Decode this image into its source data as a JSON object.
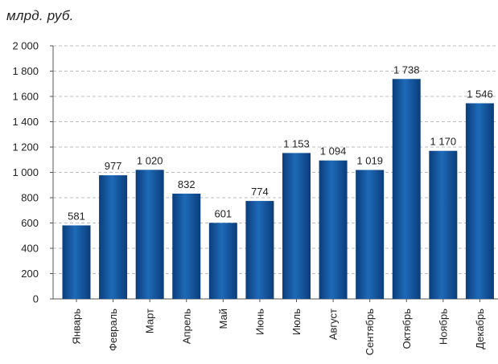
{
  "chart_data": {
    "type": "bar",
    "unit_label": "млрд. руб.",
    "categories": [
      "Январь",
      "Февраль",
      "Март",
      "Апрель",
      "Май",
      "Июнь",
      "Июль",
      "Август",
      "Сентябрь",
      "Октябрь",
      "Ноябрь",
      "Декабрь"
    ],
    "values": [
      581,
      977,
      1020,
      832,
      601,
      774,
      1153,
      1094,
      1019,
      1738,
      1170,
      1546
    ],
    "value_labels": [
      "581",
      "977",
      "1 020",
      "832",
      "601",
      "774",
      "1 153",
      "1 094",
      "1 019",
      "1 738",
      "1 170",
      "1 546"
    ],
    "ylim": [
      0,
      2000
    ],
    "yticks": [
      0,
      200,
      400,
      600,
      800,
      1000,
      1200,
      1400,
      1600,
      1800,
      2000
    ],
    "ytick_labels": [
      "0",
      "200",
      "400",
      "600",
      "800",
      "1 000",
      "1 200",
      "1 400",
      "1 600",
      "1 800",
      "2 000"
    ],
    "grid": true,
    "colors": {
      "bar_dark": "#0b3d7a",
      "bar_light": "#1e6ab8",
      "grid": "#bdbdbd",
      "axis": "#555555"
    }
  }
}
